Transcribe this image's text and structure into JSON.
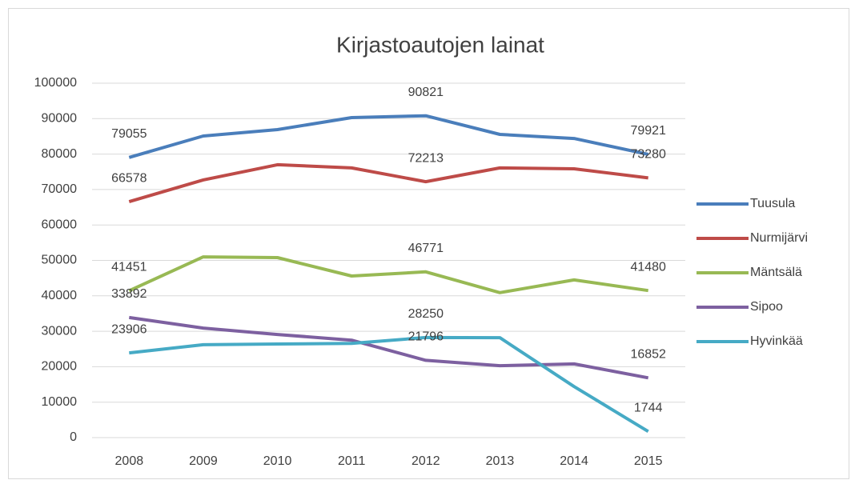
{
  "chart_data": {
    "type": "line",
    "title": "Kirjastoautojen lainat",
    "categories": [
      "2008",
      "2009",
      "2010",
      "2011",
      "2012",
      "2013",
      "2014",
      "2015"
    ],
    "series": [
      {
        "name": "Tuusula",
        "color": "#4a7ebb",
        "values": [
          79055,
          85100,
          86900,
          90300,
          90821,
          85550,
          84400,
          79921
        ]
      },
      {
        "name": "Nurmijärvi",
        "color": "#be4b48",
        "values": [
          66578,
          72700,
          77000,
          76100,
          72213,
          76100,
          75850,
          73280
        ]
      },
      {
        "name": "Mäntsälä",
        "color": "#98b954",
        "values": [
          41451,
          51000,
          50800,
          45600,
          46771,
          40900,
          44500,
          41480
        ]
      },
      {
        "name": "Sipoo",
        "color": "#7d60a0",
        "values": [
          33892,
          30900,
          29100,
          27500,
          21796,
          20300,
          20800,
          16852
        ]
      },
      {
        "name": "Hyvinkää",
        "color": "#46aac5",
        "values": [
          23906,
          26200,
          26400,
          26600,
          28250,
          28200,
          14400,
          1744
        ]
      }
    ],
    "ylim": [
      0,
      100000
    ],
    "yticks": [
      0,
      10000,
      20000,
      30000,
      40000,
      50000,
      60000,
      70000,
      80000,
      90000,
      100000
    ],
    "grid": true,
    "legend": "right"
  }
}
